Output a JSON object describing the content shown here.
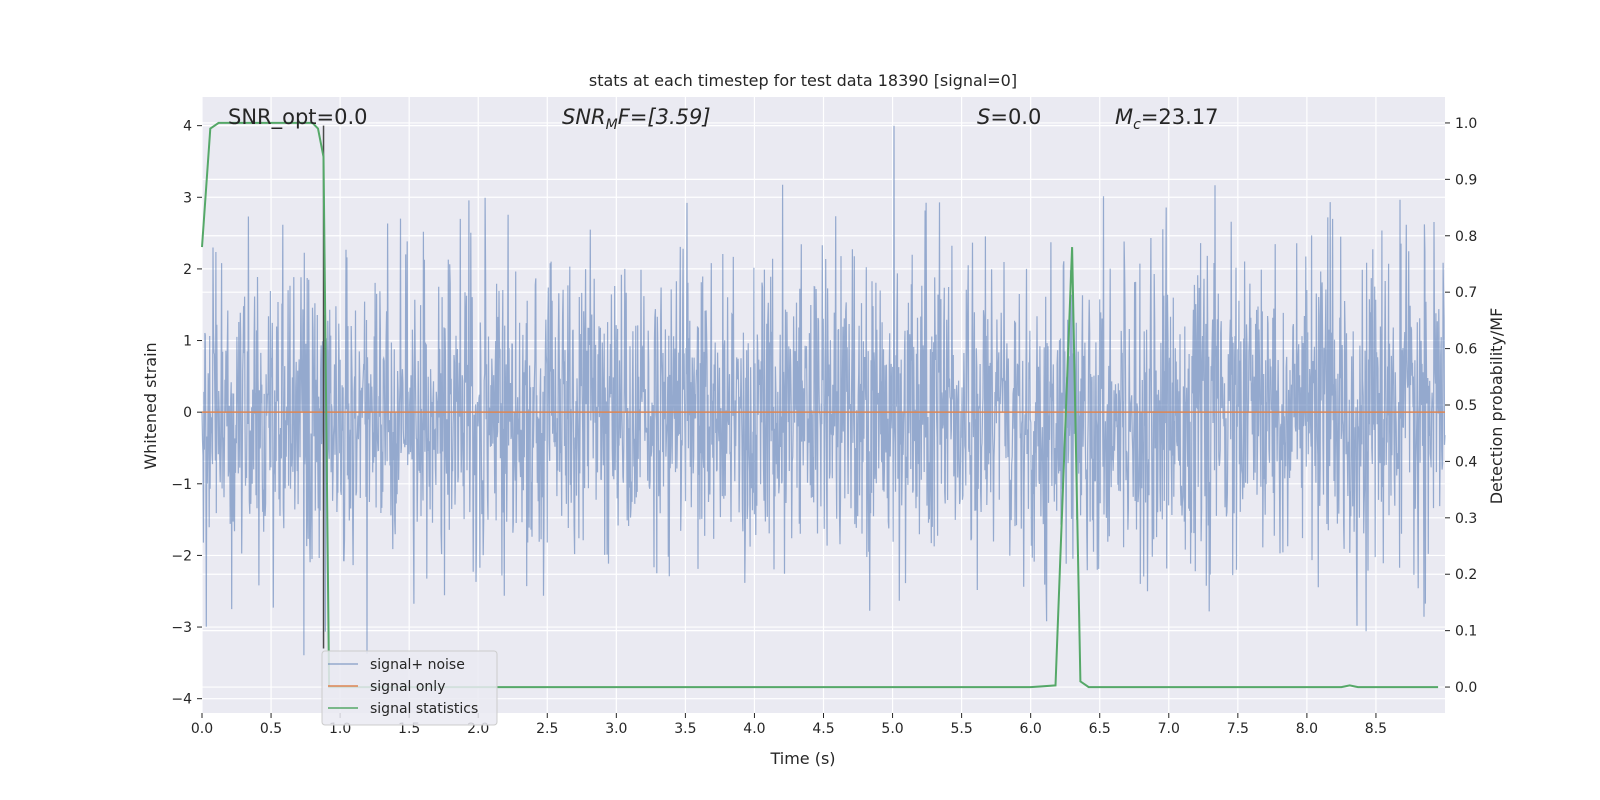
{
  "chart_data": {
    "type": "line",
    "title": "stats at each timestep for test data 18390 [signal=0]",
    "xlabel": "Time (s)",
    "ylabel": "Whitened strain",
    "y2label": "Detection probability/MF",
    "xlim": [
      0,
      9.0
    ],
    "ylim": [
      -4.2,
      4.4
    ],
    "y2lim": [
      -0.046,
      1.046
    ],
    "x_ticks": [
      "0.0",
      "0.5",
      "1.0",
      "1.5",
      "2.0",
      "2.5",
      "3.0",
      "3.5",
      "4.0",
      "4.5",
      "5.0",
      "5.5",
      "6.0",
      "6.5",
      "7.0",
      "7.5",
      "8.0",
      "8.5"
    ],
    "y_ticks": [
      "4",
      "3",
      "2",
      "1",
      "0",
      "−1",
      "−2",
      "−3",
      "−4"
    ],
    "y2_ticks": [
      "1.0",
      "0.9",
      "0.8",
      "0.7",
      "0.6",
      "0.5",
      "0.4",
      "0.3",
      "0.2",
      "0.1",
      "0.0"
    ],
    "grid": true,
    "annotations": {
      "snr_opt": "SNR_opt=0.0",
      "snr_mf_main": "SNR",
      "snr_mf_sub": "M",
      "snr_mf_rest": "F=[3.59]",
      "s_main": "S",
      "s_rest": "=0.0",
      "mc_main": "M",
      "mc_sub": "c",
      "mc_rest": "=23.17"
    },
    "legend": {
      "position": "lower-left",
      "entries": [
        "signal+ noise",
        "signal only",
        "signal statistics"
      ]
    },
    "series": [
      {
        "name": "signal+ noise",
        "axis": "left",
        "color": "#4c72b0",
        "description_range": "noise spanning roughly -3.7 to 4.0",
        "min_y": -3.7,
        "max_y": 4.0
      },
      {
        "name": "signal only",
        "axis": "left",
        "color": "#dd8452",
        "x": [
          0,
          9.0
        ],
        "y": [
          0,
          0
        ]
      },
      {
        "name": "signal statistics",
        "axis": "right",
        "color": "#55a868",
        "x": [
          0.0,
          0.06,
          0.12,
          0.2,
          0.4,
          0.6,
          0.8,
          0.84,
          0.88,
          0.92,
          0.96,
          1.0,
          2.0,
          3.0,
          4.0,
          5.0,
          6.0,
          6.18,
          6.3,
          6.36,
          6.42,
          6.5,
          7.0,
          8.0,
          8.25,
          8.31,
          8.37,
          8.5,
          8.95
        ],
        "y": [
          0.78,
          0.99,
          1.0,
          1.0,
          1.0,
          1.0,
          1.0,
          0.99,
          0.94,
          0.0,
          0.0,
          0.0,
          0.0,
          0.0,
          0.0,
          0.0,
          0.0,
          0.003,
          0.78,
          0.01,
          0.0,
          0.0,
          0.0,
          0.0,
          0.0,
          0.003,
          0.0,
          0.0,
          0.0
        ]
      }
    ],
    "vertical_line": {
      "x": 0.88,
      "color": "#4a4a4a"
    }
  }
}
